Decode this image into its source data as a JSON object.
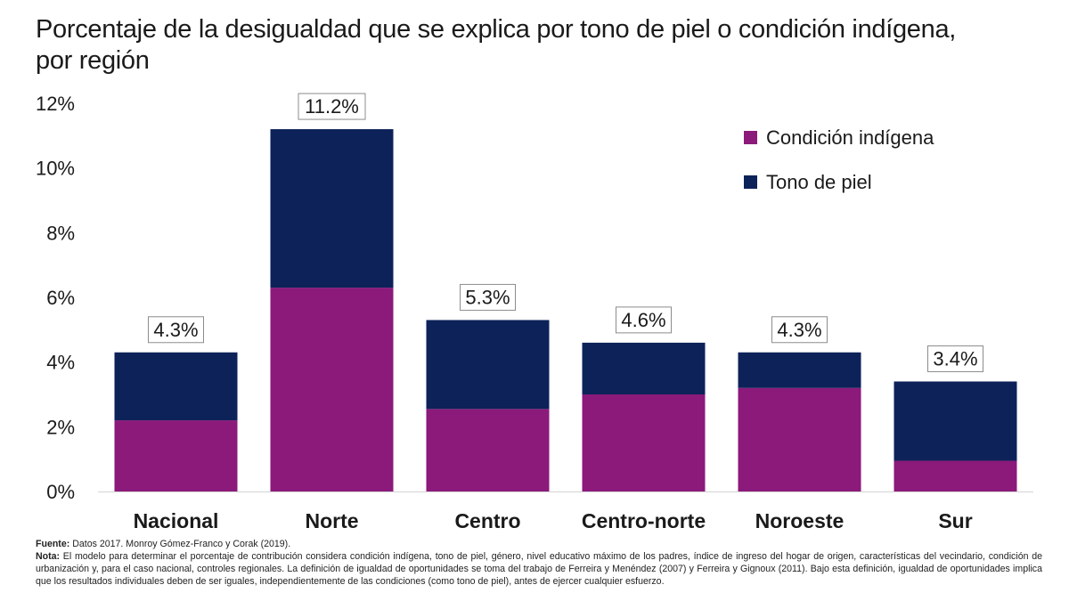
{
  "chart_data": {
    "type": "bar",
    "stacked": true,
    "title": [
      "Porcentaje de la desigualdad que se explica por tono de piel o condición indígena,",
      "por región"
    ],
    "categories": [
      "Nacional",
      "Norte",
      "Centro",
      "Centro-norte",
      "Noroeste",
      "Sur"
    ],
    "series": [
      {
        "name": "Condición indígena",
        "color": "#8b1a7a",
        "values": [
          2.2,
          6.3,
          2.55,
          3.0,
          3.2,
          0.95
        ]
      },
      {
        "name": "Tono de piel",
        "color": "#0d2259",
        "values": [
          2.1,
          4.9,
          2.75,
          1.6,
          1.1,
          2.45
        ]
      }
    ],
    "total_labels": [
      "4.3%",
      "11.2%",
      "5.3%",
      "4.6%",
      "4.3%",
      "3.4%"
    ],
    "ylim": [
      0,
      12
    ],
    "yticks": [
      0,
      2,
      4,
      6,
      8,
      10,
      12
    ],
    "ytick_labels": [
      "0%",
      "2%",
      "4%",
      "6%",
      "8%",
      "10%",
      "12%"
    ],
    "xlabel": "",
    "ylabel": "",
    "grid": false,
    "legend_position": "top-right"
  },
  "notes": {
    "source_label": "Fuente:",
    "source_text": " Datos 2017. Monroy Gómez-Franco y Corak (2019).",
    "note_label": "Nota:",
    "note_text": " El modelo para determinar el porcentaje de contribución considera condición indígena, tono de piel, género, nivel educativo máximo de los padres, índice de ingreso del hogar de origen, características del vecindario, condición de urbanización y, para el caso nacional, controles regionales. La definición de igualdad de oportunidades se toma del trabajo de Ferreira y Menéndez (2007) y Ferreira y Gignoux (2011). Bajo esta definición, igualdad de oportunidades implica que los resultados individuales deben de ser iguales, independientemente de las condiciones (como tono de piel), antes de ejercer cualquier esfuerzo."
  }
}
